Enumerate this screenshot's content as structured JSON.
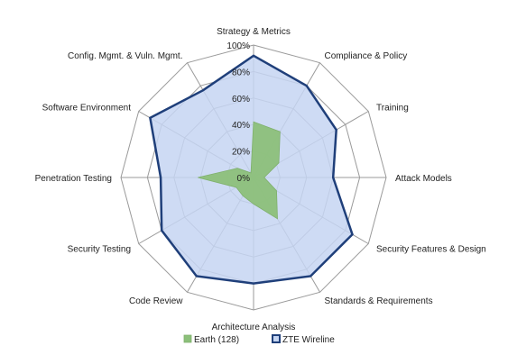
{
  "chart_data": {
    "type": "radar",
    "categories": [
      "Strategy & Metrics",
      "Compliance & Policy",
      "Training",
      "Attack Models",
      "Security Features & Design",
      "Standards & Requirements",
      "Architecture Analysis",
      "Code Review",
      "Security Testing",
      "Penetration Testing",
      "Software Environment",
      "Config. Mgmt. & Vuln. Mgmt."
    ],
    "ticks": [
      "0%",
      "20%",
      "40%",
      "60%",
      "80%",
      "100%"
    ],
    "rlim": [
      0,
      100
    ],
    "series": [
      {
        "name": "Earth (128)",
        "type": "area",
        "color": "#8cc07a",
        "values": [
          42,
          40,
          22,
          8,
          20,
          36,
          20,
          16,
          15,
          42,
          14,
          4
        ]
      },
      {
        "name": "ZTE Wireline",
        "type": "outline",
        "color": "#1f3f7a",
        "fill": "#c5d5f2",
        "values": [
          92,
          80,
          72,
          60,
          86,
          86,
          80,
          86,
          80,
          70,
          90,
          76
        ]
      }
    ],
    "legend_position": "bottom",
    "grid": true
  }
}
